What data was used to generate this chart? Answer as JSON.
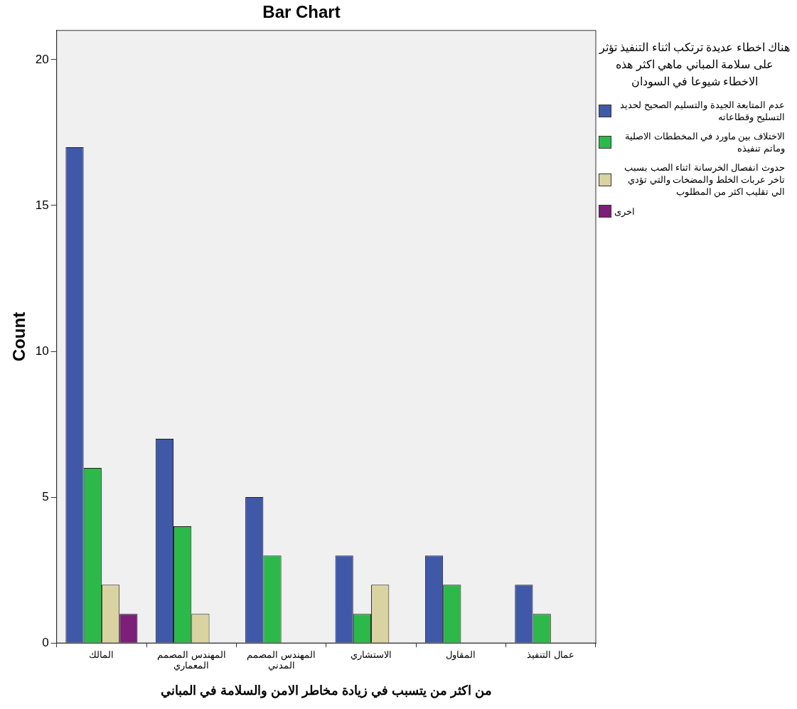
{
  "chart_data": {
    "type": "bar",
    "title": "Bar Chart",
    "xlabel": "من اكثر من يتسبب في زيادة مخاطر الامن والسلامة في المباني",
    "ylabel": "Count",
    "legend_title": "هناك اخطاء عديدة ترتكب اثناء التنفيذ تؤثر على سلامة المباني ماهي اكثر هذه الاخطاء شيوعا في السودان",
    "categories": [
      "المالك",
      "المهندس المصمم المعماري",
      "المهندس المصمم المدني",
      "الاستشاري",
      "المقاول",
      "عمال التنفيذ"
    ],
    "series": [
      {
        "name": "عدم المتابعة الجيدة والتسليم الصحيح لحديد التسليح وقطاعاته",
        "color": "#3f58a8",
        "values": [
          17,
          7,
          5,
          3,
          3,
          2
        ]
      },
      {
        "name": "الاختلاف بين ماورد في المخططات الاصلية وماتم تنفيذه",
        "color": "#2db84a",
        "values": [
          6,
          4,
          3,
          1,
          2,
          1
        ]
      },
      {
        "name": "حدوث انفصال الخرسانة اثناء الصب بسبب تاخر عربات الخلط والمضخات والتي تؤدي الي تقليب اكثر من المطلوب",
        "color": "#d8d3a0",
        "values": [
          2,
          1,
          null,
          2,
          null,
          null
        ]
      },
      {
        "name": "اخرى",
        "color": "#7b1f78",
        "values": [
          1,
          null,
          null,
          null,
          null,
          null
        ]
      }
    ],
    "ylim": [
      0,
      21
    ],
    "yticks": [
      0,
      5,
      10,
      15,
      20
    ],
    "grid": false,
    "legend": "right"
  }
}
